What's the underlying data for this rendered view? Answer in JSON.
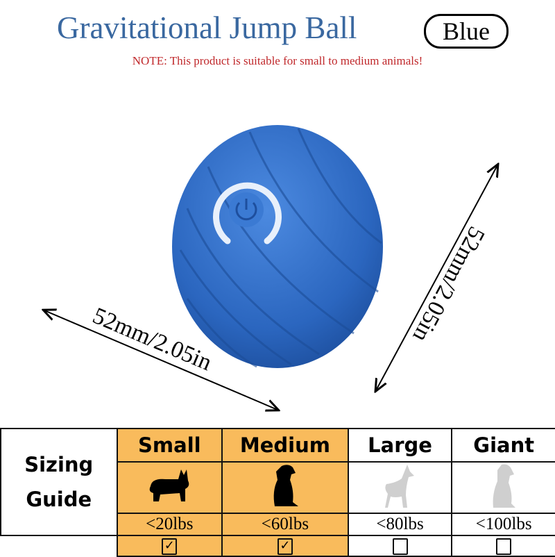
{
  "header": {
    "title": "Gravitational Jump Ball",
    "color_badge": "Blue",
    "note": "NOTE: This product is suitable for small to medium animals!"
  },
  "product": {
    "color": "#2f6cc4",
    "icon": "power-icon"
  },
  "dimensions": {
    "width_label": "52mm/2.05in",
    "height_label": "52mm/2.05in"
  },
  "sizing_guide": {
    "label_line1": "Sizing",
    "label_line2": "Guide",
    "highlight_color": "#f9bb5c",
    "sizes": [
      {
        "name": "Small",
        "weight": "<20lbs",
        "checked": true,
        "icon": "corgi-icon"
      },
      {
        "name": "Medium",
        "weight": "<60lbs",
        "checked": true,
        "icon": "sitting-dog-icon"
      },
      {
        "name": "Large",
        "weight": "<80lbs",
        "checked": false,
        "icon": "shepherd-dog-icon"
      },
      {
        "name": "Giant",
        "weight": "<100lbs",
        "checked": false,
        "icon": "large-dog-icon"
      }
    ]
  }
}
